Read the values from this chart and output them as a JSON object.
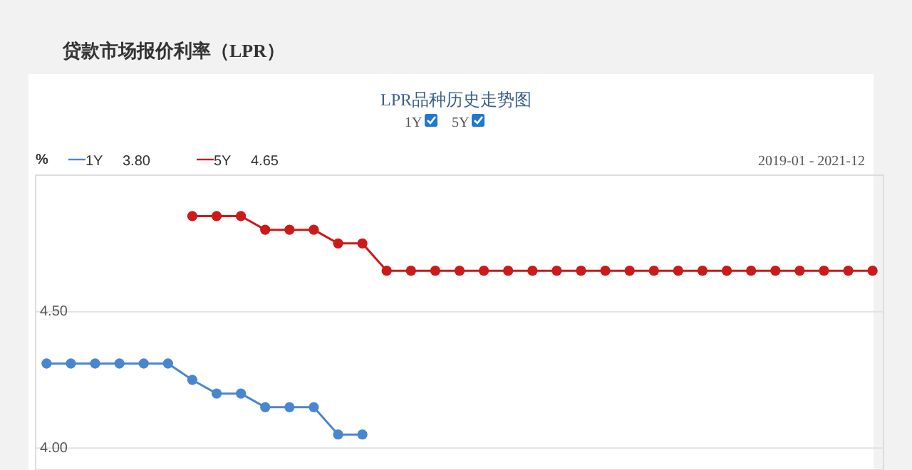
{
  "chart_data": {
    "type": "line",
    "title": "贷款市场报价利率（LPR）",
    "subtitle": "LPR品种历史走势图",
    "ylabel": "%",
    "annotations": [
      "3.80",
      "4.65",
      "2019-01 - 2021-12"
    ],
    "categories": [
      null,
      null,
      null,
      null,
      null,
      null,
      null,
      null,
      null,
      null,
      null,
      null,
      null,
      null,
      null,
      null,
      null,
      null,
      null,
      null,
      null,
      null,
      null,
      null,
      null,
      null,
      null,
      null,
      null,
      null,
      null,
      null,
      null,
      null,
      null
    ],
    "series": [
      {
        "name": "1Y",
        "color": "#4a86d0",
        "values": [
          4.31,
          4.31,
          4.31,
          4.31,
          4.31,
          4.31,
          4.25,
          4.2,
          4.2,
          4.15,
          4.15,
          4.15,
          4.05,
          4.05,
          null,
          null,
          null,
          null,
          null,
          null,
          null,
          null,
          null,
          null,
          null,
          null,
          null,
          null,
          null,
          null,
          null,
          null,
          null,
          null,
          null
        ]
      },
      {
        "name": "5Y",
        "color": "#cc1a1a",
        "values": [
          null,
          null,
          null,
          null,
          null,
          null,
          4.85,
          4.85,
          4.85,
          4.8,
          4.8,
          4.8,
          4.75,
          4.75,
          4.65,
          4.65,
          4.65,
          4.65,
          4.65,
          4.65,
          4.65,
          4.65,
          4.65,
          4.65,
          4.65,
          4.65,
          4.65,
          4.65,
          4.65,
          4.65,
          4.65,
          4.65,
          4.65,
          4.65,
          4.65
        ]
      }
    ],
    "ylim": [
      3.92,
      5.0
    ],
    "yticks": [
      {
        "value": 4.0,
        "label": "4.00"
      },
      {
        "value": 4.5,
        "label": "4.50"
      }
    ],
    "tick_labels": "y",
    "grid": "y",
    "legend": "top left",
    "marker": "circle",
    "line_style": "solid"
  }
}
